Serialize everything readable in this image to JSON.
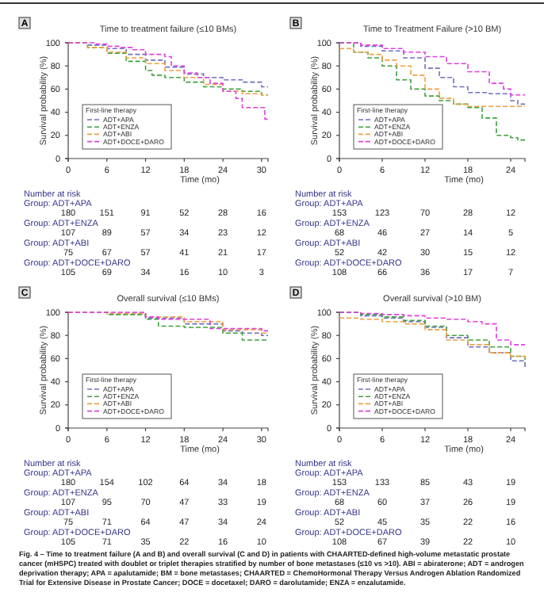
{
  "chart_data": [
    {
      "type": "step",
      "title": "Time to treatment failure (≤10 BMs)",
      "xlabel": "Time (mo)",
      "ylabel": "Survival probability (%)",
      "legend_title": "First-line therapy",
      "legend": "bottom left",
      "line_style": "dashed",
      "xlim": [
        0,
        31
      ],
      "xticks": [
        0,
        6,
        12,
        18,
        24,
        30
      ],
      "ylim": [
        0,
        100
      ],
      "yticks": [
        0,
        20,
        40,
        60,
        80,
        100
      ],
      "annotations": [
        "A",
        "Number at risk",
        "Group: ADT+APA",
        "180 151 91 52 28 16",
        "Group: ADT+ENZA",
        "107 89 57 34 23 12",
        "Group: ADT+ABI",
        "75 67 57 41 21 17",
        "Group: ADT+DOCE+DARO",
        "105 69 34 16 10 3"
      ],
      "series": [
        {
          "name": "ADT+APA",
          "color": "#7070c0",
          "x": [
            0,
            3,
            6,
            9,
            12,
            15,
            18,
            21,
            24,
            27,
            30,
            31
          ],
          "values": [
            100,
            98,
            95,
            90,
            85,
            79,
            73,
            70,
            68,
            66,
            62,
            62
          ]
        },
        {
          "name": "ADT+ENZA",
          "color": "#40a040",
          "x": [
            0,
            3,
            6,
            9,
            12,
            13,
            15,
            18,
            21,
            24,
            27,
            30,
            31
          ],
          "values": [
            100,
            96,
            91,
            84,
            76,
            72,
            70,
            66,
            62,
            60,
            58,
            55,
            55
          ]
        },
        {
          "name": "ADT+ABI",
          "color": "#f0a040",
          "x": [
            0,
            3,
            6,
            9,
            12,
            15,
            18,
            21,
            24,
            27,
            30,
            31
          ],
          "values": [
            100,
            96,
            92,
            87,
            82,
            76,
            70,
            64,
            58,
            56,
            55,
            55
          ]
        },
        {
          "name": "ADT+DOCE+DARO",
          "color": "#e040e0",
          "x": [
            0,
            4,
            6,
            8,
            10,
            12,
            15,
            16,
            18,
            20,
            22,
            24,
            26,
            27,
            30,
            30.5,
            31
          ],
          "values": [
            100,
            99,
            97,
            96,
            94,
            90,
            88,
            80,
            74,
            70,
            65,
            58,
            52,
            44,
            44,
            34,
            34
          ]
        }
      ]
    },
    {
      "type": "step",
      "title": "Time to Treatment Failure (>10 BM)",
      "xlabel": "Time (mo)",
      "ylabel": "Survival probability (%)",
      "legend_title": "First-line therapy",
      "legend": "bottom left",
      "line_style": "dashed",
      "xlim": [
        0,
        26
      ],
      "xticks": [
        0,
        6,
        12,
        18,
        24
      ],
      "ylim": [
        0,
        100
      ],
      "yticks": [
        0,
        20,
        40,
        60,
        80,
        100
      ],
      "annotations": [
        "B",
        "Number at risk",
        "Group: ADT+APA",
        "153 123 70 28 12",
        "Group: ADT+ENZA",
        "68 46 27 14 5",
        "Group: ADT+ABI",
        "52 42 30 15 12",
        "Group: ADT+DOCE+DARO",
        "108 66 36 17 7"
      ],
      "series": [
        {
          "name": "ADT+APA",
          "color": "#7070c0",
          "x": [
            0,
            3,
            6,
            9,
            12,
            14,
            16,
            18,
            21,
            24,
            25,
            26
          ],
          "values": [
            100,
            97,
            93,
            87,
            78,
            70,
            62,
            57,
            56,
            50,
            47,
            47
          ]
        },
        {
          "name": "ADT+ENZA",
          "color": "#40a040",
          "x": [
            0,
            2,
            4,
            6,
            8,
            10,
            12,
            14,
            16,
            18,
            20,
            22,
            24,
            25,
            26
          ],
          "values": [
            100,
            92,
            87,
            80,
            68,
            60,
            54,
            50,
            47,
            44,
            35,
            20,
            18,
            16,
            16
          ]
        },
        {
          "name": "ADT+ABI",
          "color": "#f0a040",
          "x": [
            0,
            2,
            4,
            6,
            8,
            10,
            12,
            14,
            16,
            18,
            26
          ],
          "values": [
            95,
            92,
            90,
            85,
            80,
            72,
            60,
            52,
            47,
            45,
            45
          ]
        },
        {
          "name": "ADT+DOCE+DARO",
          "color": "#e040e0",
          "x": [
            0,
            3,
            6,
            9,
            12,
            15,
            18,
            21,
            23,
            24,
            26
          ],
          "values": [
            100,
            98,
            95,
            92,
            88,
            82,
            75,
            65,
            60,
            55,
            55
          ]
        }
      ]
    },
    {
      "type": "step",
      "title": "Overall survival (≤10 BMs)",
      "xlabel": "Time (mo)",
      "ylabel": "Survival probability (%)",
      "legend_title": "First-line therapy",
      "legend": "bottom left",
      "line_style": "dashed",
      "xlim": [
        0,
        31
      ],
      "xticks": [
        0,
        6,
        12,
        18,
        24,
        30
      ],
      "ylim": [
        0,
        100
      ],
      "yticks": [
        0,
        20,
        40,
        60,
        80,
        100
      ],
      "annotations": [
        "C",
        "Number at risk",
        "Group: ADT+APA",
        "180 154 102 64 34 18",
        "Group: ADT+ENZA",
        "107 95 70 47 33 19",
        "Group: ADT+ABI",
        "75 71 64 47 34 24",
        "Group: ADT+DOCE+DARO",
        "105 71 35 22 16 10"
      ],
      "series": [
        {
          "name": "ADT+APA",
          "color": "#7070c0",
          "x": [
            0,
            6,
            12,
            18,
            24,
            27,
            30,
            31
          ],
          "values": [
            100,
            99,
            95,
            90,
            84,
            82,
            80,
            80
          ]
        },
        {
          "name": "ADT+ENZA",
          "color": "#40a040",
          "x": [
            0,
            6,
            12,
            14,
            18,
            24,
            27,
            30,
            31
          ],
          "values": [
            100,
            98,
            94,
            88,
            87,
            82,
            76,
            76,
            76
          ]
        },
        {
          "name": "ADT+ABI",
          "color": "#f0a040",
          "x": [
            0,
            6,
            12,
            18,
            24,
            30,
            31
          ],
          "values": [
            100,
            99,
            96,
            92,
            85,
            82,
            82
          ]
        },
        {
          "name": "ADT+DOCE+DARO",
          "color": "#e040e0",
          "x": [
            0,
            6,
            12,
            14,
            20,
            22,
            24,
            30,
            31
          ],
          "values": [
            100,
            100,
            96,
            94,
            94,
            86,
            86,
            84,
            84
          ]
        }
      ]
    },
    {
      "type": "step",
      "title": "Overall survival (>10 BM)",
      "xlabel": "Time (mo)",
      "ylabel": "Survival probability (%)",
      "legend_title": "First-line therapy",
      "legend": "bottom left",
      "line_style": "dashed",
      "xlim": [
        0,
        26
      ],
      "xticks": [
        0,
        6,
        12,
        18,
        24
      ],
      "ylim": [
        0,
        100
      ],
      "yticks": [
        0,
        20,
        40,
        60,
        80,
        100
      ],
      "annotations": [
        "D",
        "Number at risk",
        "Group: ADT+APA",
        "153 133 85 43 19",
        "Group: ADT+ENZA",
        "68 60 37 26 19",
        "Group: ADT+ABI",
        "52 45 35 22 16",
        "Group: ADT+DOCE+DARO",
        "108 67 39 22 10",
        "Fig. 4 – Time to treatment failure (A and B) and overall survival (C and D) in patients with CHAARTED-defined high-volume metastatic prostate cancer (mHSPC) treated with doublet or triplet therapies stratified by number of bone metastases (≤10 vs >10). ABI = abiraterone; ADT = androgen deprivation therapy; APA = apalutamide; BM = bone metastases; CHAARTED = ChemoHormonal Therapy Versus Androgen Ablation Randomized Trial for Extensive Disease in Prostate Cancer; DOCE = docetaxel; DARO = darolutamide; ENZA = enzalutamide."
      ],
      "series": [
        {
          "name": "ADT+APA",
          "color": "#7070c0",
          "x": [
            0,
            3,
            6,
            9,
            12,
            15,
            18,
            21,
            24,
            26
          ],
          "values": [
            100,
            97,
            95,
            92,
            87,
            78,
            70,
            65,
            58,
            52
          ]
        },
        {
          "name": "ADT+ENZA",
          "color": "#40a040",
          "x": [
            0,
            3,
            6,
            9,
            12,
            15,
            18,
            21,
            24,
            26
          ],
          "values": [
            100,
            98,
            96,
            93,
            88,
            80,
            76,
            70,
            62,
            56
          ]
        },
        {
          "name": "ADT+ABI",
          "color": "#f0a040",
          "x": [
            0,
            3,
            6,
            9,
            12,
            15,
            18,
            21,
            24,
            26
          ],
          "values": [
            95,
            94,
            92,
            90,
            85,
            76,
            72,
            65,
            62,
            60
          ]
        },
        {
          "name": "ADT+DOCE+DARO",
          "color": "#e040e0",
          "x": [
            0,
            3,
            6,
            9,
            12,
            15,
            18,
            20,
            22,
            24,
            26
          ],
          "values": [
            100,
            99,
            98,
            97,
            95,
            94,
            92,
            90,
            76,
            72,
            72
          ]
        }
      ]
    }
  ]
}
